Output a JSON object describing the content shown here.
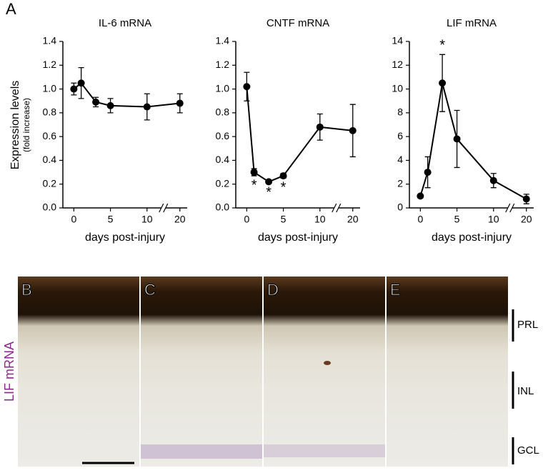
{
  "panel_label": "A",
  "chart_data": [
    {
      "type": "line",
      "title": "IL-6 mRNA",
      "ylabel": "Expression levels",
      "ylabel_sub": "(fold increase)",
      "xlabel": "days post-injury",
      "x": [
        0,
        1,
        3,
        5,
        10,
        20
      ],
      "values": [
        1.0,
        1.05,
        0.89,
        0.86,
        0.85,
        0.88
      ],
      "errors": [
        0.05,
        0.13,
        0.04,
        0.06,
        0.11,
        0.08
      ],
      "color": "#000000",
      "xlim": [
        -1.5,
        21
      ],
      "xbreak": [
        12,
        18
      ],
      "xticks": [
        0,
        5,
        10,
        20
      ],
      "ylim": [
        0,
        1.4
      ],
      "yticks": [
        {
          "value": 0,
          "label": "0.0"
        },
        0.2,
        0.4,
        0.6,
        0.8,
        {
          "value": 1,
          "label": "1.0"
        },
        1.2,
        1.4
      ]
    },
    {
      "type": "line",
      "title": "CNTF mRNA",
      "xlabel": "days post-injury",
      "x": [
        0,
        1,
        3,
        5,
        10,
        20
      ],
      "values": [
        1.02,
        0.3,
        0.22,
        0.27,
        0.68,
        0.65
      ],
      "errors": [
        0.12,
        0.03,
        0.01,
        0.02,
        0.11,
        0.22
      ],
      "markers": [
        null,
        "*",
        "*",
        "*",
        null,
        null
      ],
      "marker_position": "below",
      "color": "#000000",
      "xlim": [
        -1.5,
        21
      ],
      "xbreak": [
        12,
        18
      ],
      "xticks": [
        0,
        5,
        10,
        20
      ],
      "ylim": [
        0,
        1.4
      ],
      "yticks": [
        {
          "value": 0,
          "label": "0.0"
        },
        0.2,
        0.4,
        0.6,
        0.8,
        {
          "value": 1,
          "label": "1.0"
        },
        1.2,
        1.4
      ]
    },
    {
      "type": "line",
      "title": "LIF mRNA",
      "xlabel": "days post-injury",
      "x": [
        0,
        1,
        3,
        5,
        10,
        20
      ],
      "values": [
        1.0,
        3.0,
        10.5,
        5.8,
        2.3,
        0.75
      ],
      "errors": [
        0.1,
        1.3,
        2.4,
        2.4,
        0.6,
        0.4
      ],
      "markers": [
        null,
        null,
        "*",
        null,
        null,
        null
      ],
      "marker_position": "above",
      "color": "#000000",
      "xlim": [
        -1.5,
        21
      ],
      "xbreak": [
        12,
        18
      ],
      "xticks": [
        0,
        5,
        10,
        20
      ],
      "ylim": [
        0,
        14
      ],
      "yticks": [
        0,
        2,
        4,
        6,
        8,
        10,
        12,
        14
      ]
    }
  ],
  "micrographs": {
    "ylabel": "LIF mRNA",
    "panels": [
      "B",
      "C",
      "D",
      "E"
    ],
    "layers": [
      "PRL",
      "INL",
      "GCL"
    ]
  }
}
